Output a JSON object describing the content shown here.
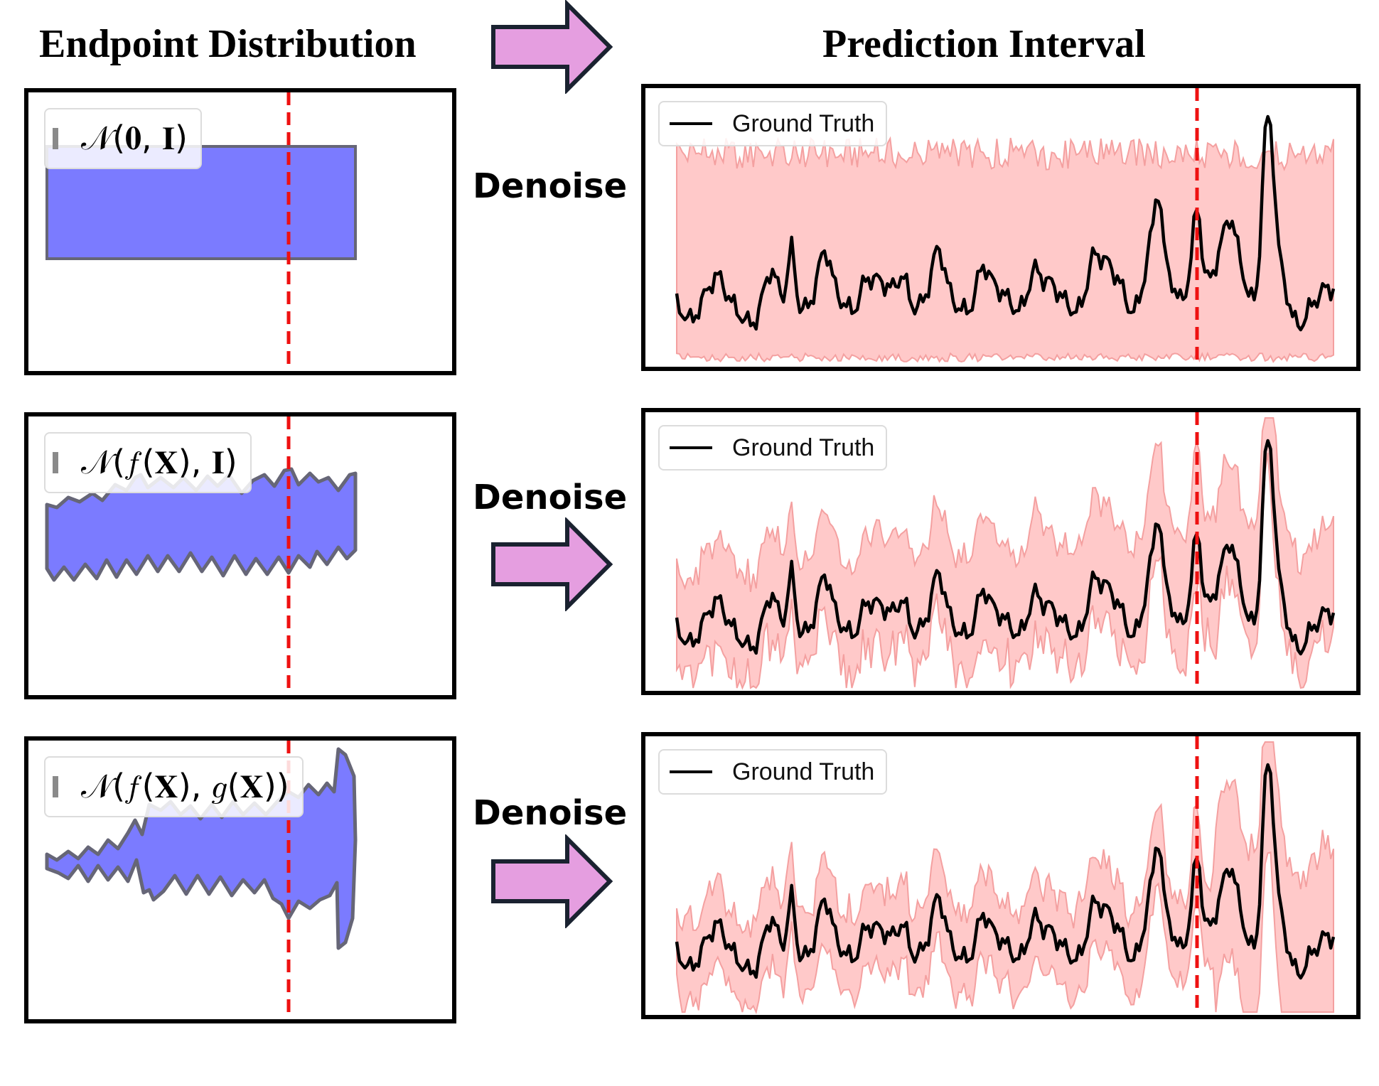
{
  "titles": {
    "left": "Endpoint Distribution",
    "right": "Prediction Interval"
  },
  "rows": [
    {
      "endpoint_legend": "𝒩(𝟎, 𝐈)",
      "action_label": "Denoise",
      "interval_legend": "Ground Truth"
    },
    {
      "endpoint_legend": "𝒩(𝑓(𝐗), 𝐈)",
      "action_label": "Denoise",
      "interval_legend": "Ground Truth"
    },
    {
      "endpoint_legend": "𝒩(𝑓(𝐗), 𝑔(𝐗))",
      "action_label": "Denoise",
      "interval_legend": "Ground Truth"
    }
  ],
  "colors": {
    "endpoint_fill": "#7b7bff",
    "endpoint_edge": "#666677",
    "interval_fill": "#ffc9c9",
    "interval_edge": "#f4a0a0",
    "ground_truth": "#000000",
    "forecast_start_line": "#ee1111",
    "arrow_fill": "#e59ee0",
    "arrow_edge": "#1a2230"
  },
  "icons": {
    "arrow": "right-block-arrow",
    "legend_marker": "grey-bar",
    "ground_truth_marker": "black-line"
  }
}
